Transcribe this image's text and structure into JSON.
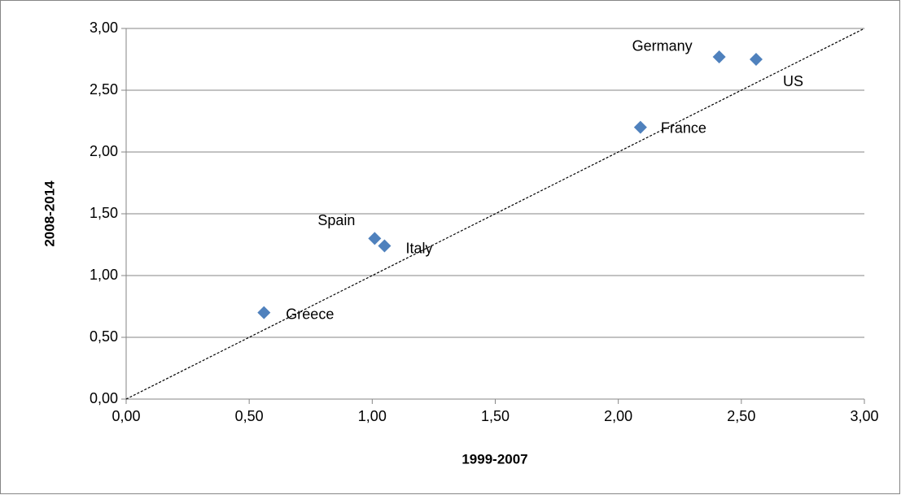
{
  "chart_data": {
    "type": "scatter",
    "xlabel": "1999-2007",
    "ylabel": "2008-2014",
    "series": [
      {
        "color": "#4f81bd",
        "labels": [
          "Greece",
          "Spain",
          "Italy",
          "France",
          "Germany",
          "US"
        ],
        "x": [
          0.56,
          1.01,
          1.05,
          2.09,
          2.41,
          2.56
        ],
        "values": [
          0.7,
          1.3,
          1.24,
          2.2,
          2.77,
          2.75
        ]
      }
    ],
    "reference_line": {
      "x": [
        0,
        3
      ],
      "values": [
        0,
        3
      ]
    },
    "xlim": [
      0,
      3
    ],
    "ylim": [
      0,
      3
    ],
    "xticks": [
      {
        "value": 0,
        "label": "0,00"
      },
      {
        "value": 0.5,
        "label": "0,50"
      },
      {
        "value": 1,
        "label": "1,00"
      },
      {
        "value": 1.5,
        "label": "1,50"
      },
      {
        "value": 2,
        "label": "2,00"
      },
      {
        "value": 2.5,
        "label": "2,50"
      },
      {
        "value": 3,
        "label": "3,00"
      }
    ],
    "yticks": [
      {
        "value": 0,
        "label": "0,00"
      },
      {
        "value": 0.5,
        "label": "0,50"
      },
      {
        "value": 1,
        "label": "1,00"
      },
      {
        "value": 1.5,
        "label": "1,50"
      },
      {
        "value": 2,
        "label": "2,00"
      },
      {
        "value": 2.5,
        "label": "2,50"
      },
      {
        "value": 3,
        "label": "3,00"
      }
    ],
    "grid": true
  }
}
